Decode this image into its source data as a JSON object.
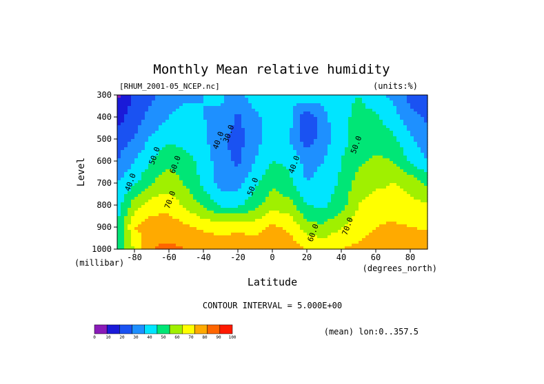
{
  "chart_data": {
    "type": "heatmap",
    "title": "Monthly Mean relative humidity",
    "file_label": "[RHUM_2001-05_NCEP.nc]",
    "units_label": "(units:%)",
    "xlabel": "Latitude",
    "x_unit_label": "(degrees_north)",
    "ylabel": "Level",
    "y_unit_label": "(millibar)",
    "xlim": [
      -90,
      90
    ],
    "ylim": [
      1000,
      300
    ],
    "x_ticks": [
      -80,
      -60,
      -40,
      -20,
      0,
      20,
      40,
      60,
      80
    ],
    "x_tick_labels": [
      "-80",
      "-60",
      "-40",
      "-20",
      "0",
      "20",
      "40",
      "60",
      "80"
    ],
    "y_ticks": [
      300,
      400,
      500,
      600,
      700,
      800,
      900,
      1000
    ],
    "y_tick_labels": [
      "300",
      "400",
      "500",
      "600",
      "700",
      "800",
      "900",
      "1000"
    ],
    "contour_interval_text": "CONTOUR INTERVAL = 5.000E+00",
    "footnote": "(mean) lon:0..357.5",
    "colorbar": {
      "levels": [
        0,
        10,
        20,
        30,
        40,
        50,
        60,
        70,
        80,
        90,
        100
      ],
      "labels": [
        "0",
        "10",
        "20",
        "30",
        "40",
        "50",
        "60",
        "70",
        "80",
        "90",
        "100"
      ],
      "colors": [
        "#8a1bb8",
        "#1a1ad8",
        "#1a52f2",
        "#1e90ff",
        "#00e5ff",
        "#00e676",
        "#a0f000",
        "#ffff00",
        "#ffaa00",
        "#ff6600",
        "#ff1a00"
      ]
    },
    "contour_labels": [
      {
        "text": "30.0",
        "lat": -24,
        "p": 480
      },
      {
        "text": "40.0",
        "lat": -30,
        "p": 510
      },
      {
        "text": "50.0",
        "lat": -67,
        "p": 580
      },
      {
        "text": "40.0",
        "lat": -81,
        "p": 700
      },
      {
        "text": "60.0",
        "lat": -55,
        "p": 620
      },
      {
        "text": "70.0",
        "lat": -58,
        "p": 780
      },
      {
        "text": "50.0",
        "lat": -10,
        "p": 720
      },
      {
        "text": "40.0",
        "lat": 14,
        "p": 620
      },
      {
        "text": "50.0",
        "lat": 50,
        "p": 530
      },
      {
        "text": "60.0",
        "lat": 25,
        "p": 930
      },
      {
        "text": "70.0",
        "lat": 45,
        "p": 900
      }
    ],
    "lats": [
      -90,
      -80,
      -70,
      -60,
      -50,
      -40,
      -30,
      -20,
      -10,
      0,
      10,
      20,
      30,
      40,
      50,
      60,
      70,
      80,
      90
    ],
    "levels_mb": [
      300,
      400,
      500,
      600,
      700,
      800,
      900,
      1000
    ],
    "values": [
      [
        8,
        22,
        28,
        35,
        38,
        40,
        42,
        36,
        45,
        42,
        40,
        48,
        44,
        46,
        50,
        42,
        38,
        26,
        22
      ],
      [
        15,
        26,
        33,
        40,
        44,
        40,
        38,
        28,
        38,
        44,
        44,
        22,
        38,
        46,
        54,
        52,
        44,
        34,
        28
      ],
      [
        25,
        30,
        42,
        48,
        46,
        42,
        32,
        26,
        36,
        46,
        40,
        24,
        36,
        46,
        54,
        56,
        52,
        42,
        34
      ],
      [
        30,
        40,
        50,
        58,
        54,
        46,
        34,
        28,
        40,
        50,
        48,
        36,
        40,
        50,
        58,
        62,
        60,
        48,
        40
      ],
      [
        40,
        48,
        60,
        66,
        58,
        48,
        36,
        36,
        48,
        58,
        52,
        40,
        44,
        52,
        64,
        68,
        70,
        68,
        58
      ],
      [
        45,
        65,
        75,
        76,
        68,
        58,
        48,
        48,
        56,
        66,
        64,
        50,
        48,
        56,
        70,
        74,
        74,
        72,
        72
      ],
      [
        50,
        80,
        86,
        86,
        82,
        78,
        76,
        78,
        76,
        82,
        78,
        64,
        62,
        70,
        76,
        80,
        82,
        80,
        78
      ],
      [
        55,
        70,
        90,
        92,
        90,
        88,
        86,
        86,
        86,
        90,
        86,
        80,
        78,
        80,
        82,
        86,
        90,
        90,
        90
      ]
    ]
  }
}
